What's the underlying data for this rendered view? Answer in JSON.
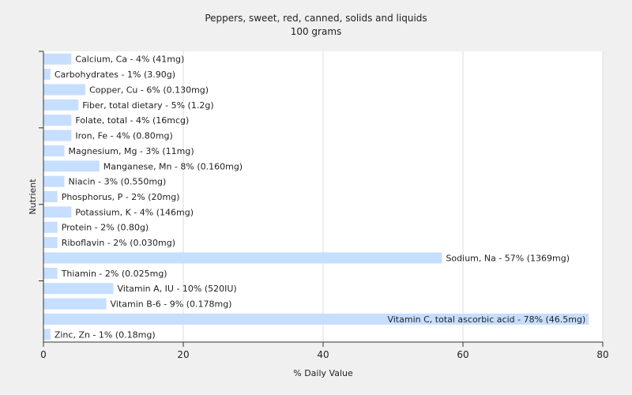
{
  "chart_data": {
    "type": "bar",
    "orientation": "horizontal",
    "title": "Peppers, sweet, red, canned, solids and liquids",
    "subtitle": "100 grams",
    "xlabel": "% Daily Value",
    "ylabel": "Nutrient",
    "xlim": [
      0,
      80
    ],
    "xticks": [
      0,
      20,
      40,
      60,
      80
    ],
    "grid": true,
    "bar_color": "#c6deff",
    "categories": [
      "Calcium, Ca - 4% (41mg)",
      "Carbohydrates - 1% (3.90g)",
      "Copper, Cu - 6% (0.130mg)",
      "Fiber, total dietary - 5% (1.2g)",
      "Folate, total - 4% (16mcg)",
      "Iron, Fe - 4% (0.80mg)",
      "Magnesium, Mg - 3% (11mg)",
      "Manganese, Mn - 8% (0.160mg)",
      "Niacin - 3% (0.550mg)",
      "Phosphorus, P - 2% (20mg)",
      "Potassium, K - 4% (146mg)",
      "Protein - 2% (0.80g)",
      "Riboflavin - 2% (0.030mg)",
      "Sodium, Na - 57% (1369mg)",
      "Thiamin - 2% (0.025mg)",
      "Vitamin A, IU - 10% (520IU)",
      "Vitamin B-6 - 9% (0.178mg)",
      "Vitamin C, total ascorbic acid - 78% (46.5mg)",
      "Zinc, Zn - 1% (0.18mg)"
    ],
    "values": [
      4,
      1,
      6,
      5,
      4,
      4,
      3,
      8,
      3,
      2,
      4,
      2,
      2,
      57,
      2,
      10,
      9,
      78,
      1
    ]
  }
}
